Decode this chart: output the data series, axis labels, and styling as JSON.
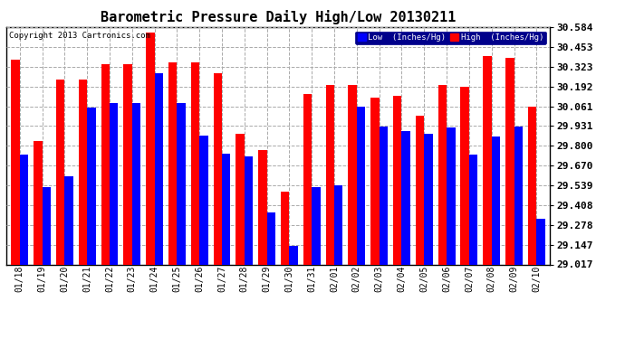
{
  "title": "Barometric Pressure Daily High/Low 20130211",
  "copyright": "Copyright 2013 Cartronics.com",
  "legend_low": "Low  (Inches/Hg)",
  "legend_high": "High  (Inches/Hg)",
  "dates": [
    "01/18",
    "01/19",
    "01/20",
    "01/21",
    "01/22",
    "01/23",
    "01/24",
    "01/25",
    "01/26",
    "01/27",
    "01/28",
    "01/29",
    "01/30",
    "01/31",
    "02/01",
    "02/02",
    "02/03",
    "02/04",
    "02/05",
    "02/06",
    "02/07",
    "02/08",
    "02/09",
    "02/10"
  ],
  "low_values": [
    29.74,
    29.53,
    29.6,
    30.05,
    30.08,
    30.08,
    30.28,
    30.08,
    29.87,
    29.75,
    29.73,
    29.36,
    29.14,
    29.53,
    29.54,
    30.06,
    29.93,
    29.9,
    29.88,
    29.92,
    29.74,
    29.86,
    29.93,
    29.32
  ],
  "high_values": [
    30.37,
    29.83,
    30.24,
    30.24,
    30.34,
    30.34,
    30.55,
    30.35,
    30.35,
    30.28,
    29.88,
    29.77,
    29.5,
    30.14,
    30.2,
    30.2,
    30.12,
    30.13,
    30.0,
    30.2,
    30.19,
    30.39,
    30.38,
    30.06
  ],
  "ymin": 29.017,
  "ymax": 30.584,
  "yticks": [
    29.017,
    29.147,
    29.278,
    29.408,
    29.539,
    29.67,
    29.8,
    29.931,
    30.061,
    30.192,
    30.323,
    30.453,
    30.584
  ],
  "low_color": "#0000ff",
  "high_color": "#ff0000",
  "bg_color": "#ffffff",
  "grid_color": "#aaaaaa",
  "title_fontsize": 11,
  "axis_fontsize": 7,
  "bar_width": 0.38
}
